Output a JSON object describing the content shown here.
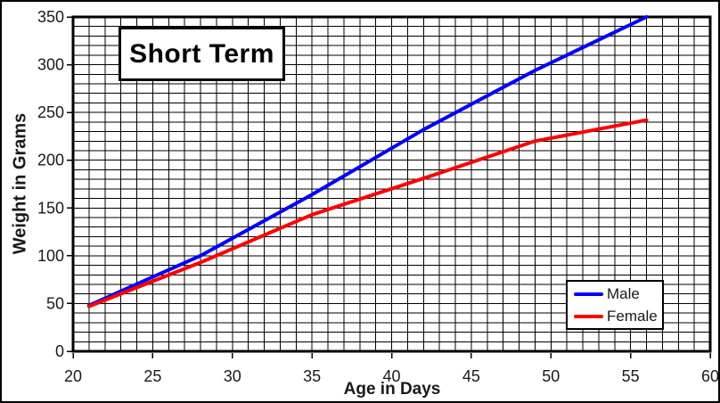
{
  "window": {
    "background_color": "#ffffff",
    "border_color": "#000000"
  },
  "chart_data": {
    "type": "line",
    "title": "Short Term",
    "xlabel": "Age in Days",
    "ylabel": "Weight in Grams",
    "xlim": [
      20,
      60
    ],
    "ylim": [
      0,
      350
    ],
    "x_major_ticks": [
      20,
      25,
      30,
      35,
      40,
      45,
      50,
      55,
      60
    ],
    "y_major_ticks": [
      0,
      50,
      100,
      150,
      200,
      250,
      300,
      350
    ],
    "x_minor_step": 1,
    "y_minor_step": 10,
    "grid": "minor-and-major-on",
    "grid_color": "#000000",
    "border_color": "#000000",
    "legend_position": "inside-bottom-right",
    "x": [
      21,
      28,
      35,
      42,
      49,
      56
    ],
    "series": [
      {
        "name": "Male",
        "color": "#0000ff",
        "values": [
          48,
          100,
          164,
          232,
          294,
          350
        ]
      },
      {
        "name": "Female",
        "color": "#ff0000",
        "values": [
          47,
          93,
          143,
          181,
          220,
          242
        ]
      }
    ]
  }
}
